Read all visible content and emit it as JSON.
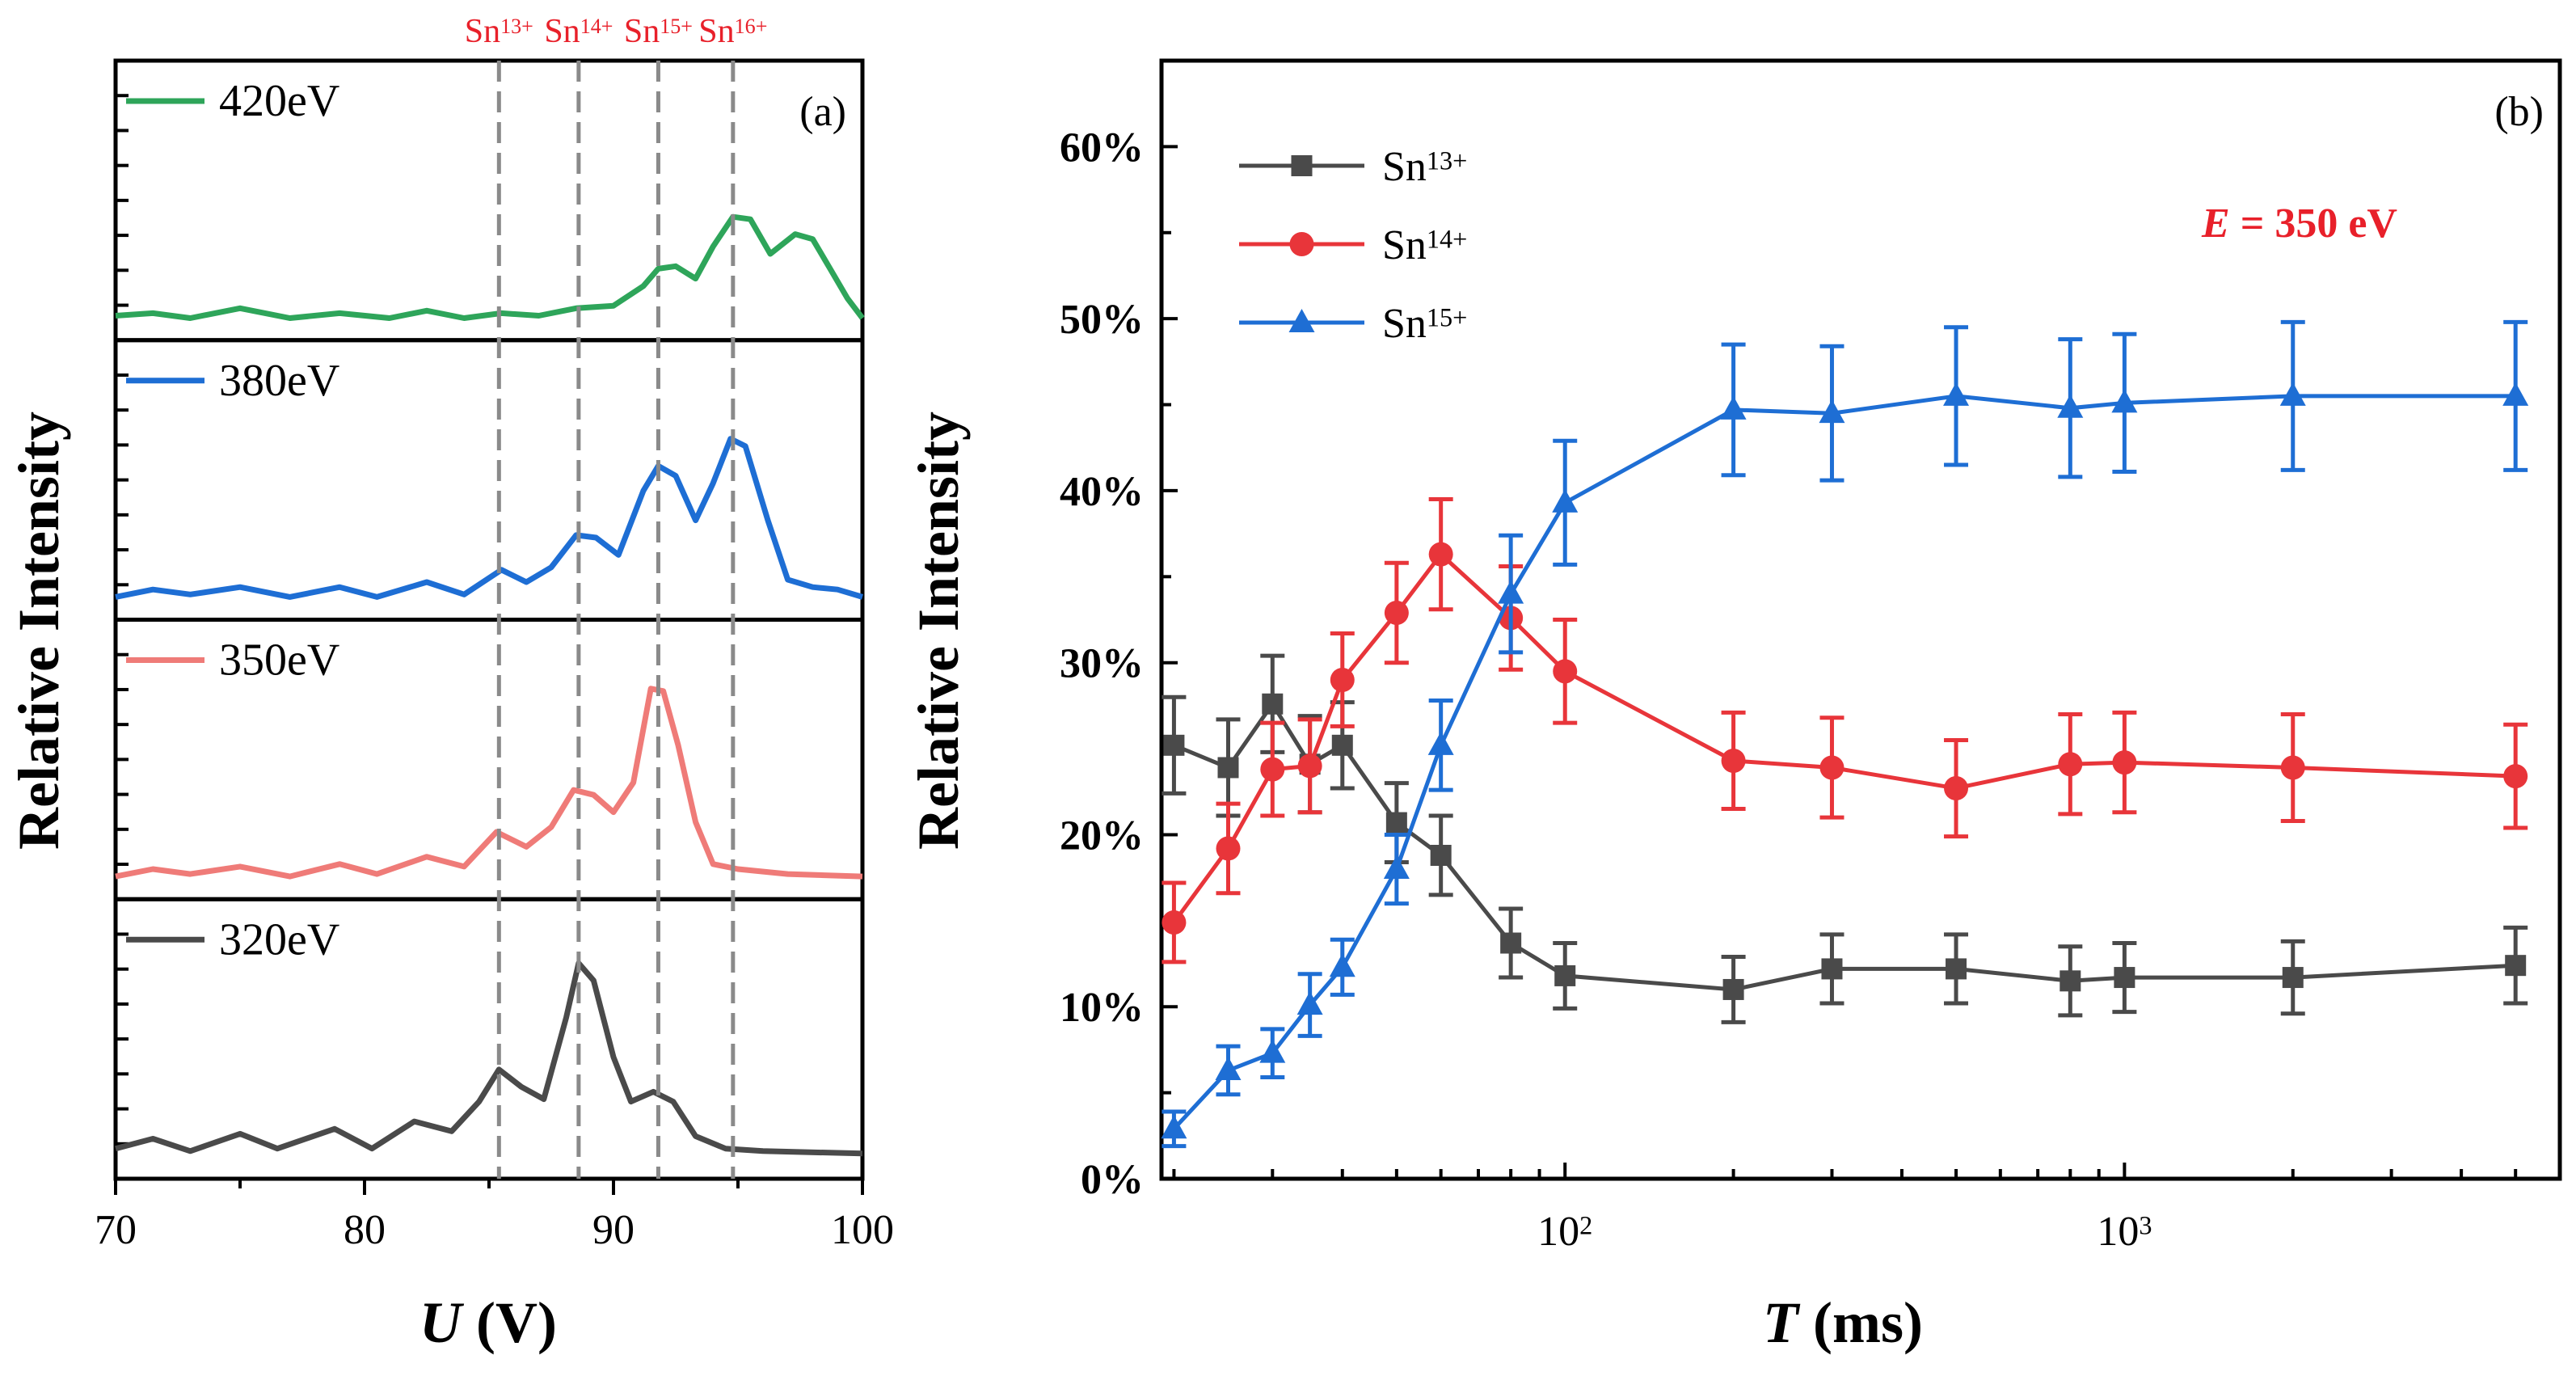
{
  "chart_data": [
    {
      "id": "a",
      "type": "line",
      "panel_label": "(a)",
      "xlabel_var": "U",
      "xlabel_unit": " (V)",
      "ylabel": "Relative Intensity",
      "xlim": [
        70,
        100
      ],
      "xticks": [
        "70",
        "80",
        "90",
        "100"
      ],
      "vlines": [
        {
          "x": 85.4,
          "label_base": "Sn",
          "label_sup": "13+"
        },
        {
          "x": 88.6,
          "label_base": "Sn",
          "label_sup": "14+"
        },
        {
          "x": 91.8,
          "label_base": "Sn",
          "label_sup": "15+"
        },
        {
          "x": 94.8,
          "label_base": "Sn",
          "label_sup": "16+"
        }
      ],
      "series": [
        {
          "name": "420eV",
          "color": "#2ea55a",
          "points": [
            [
              70,
              0.05
            ],
            [
              71.5,
              0.06
            ],
            [
              73,
              0.04
            ],
            [
              75,
              0.08
            ],
            [
              77,
              0.04
            ],
            [
              79,
              0.06
            ],
            [
              81,
              0.04
            ],
            [
              82.5,
              0.07
            ],
            [
              84,
              0.04
            ],
            [
              85.5,
              0.06
            ],
            [
              87,
              0.05
            ],
            [
              88.5,
              0.08
            ],
            [
              90,
              0.09
            ],
            [
              91.2,
              0.17
            ],
            [
              91.8,
              0.24
            ],
            [
              92.5,
              0.25
            ],
            [
              93.3,
              0.2
            ],
            [
              94,
              0.33
            ],
            [
              94.8,
              0.45
            ],
            [
              95.5,
              0.44
            ],
            [
              96.3,
              0.3
            ],
            [
              97.3,
              0.38
            ],
            [
              98,
              0.36
            ],
            [
              98.7,
              0.24
            ],
            [
              99.4,
              0.12
            ],
            [
              100,
              0.04
            ]
          ]
        },
        {
          "name": "380eV",
          "color": "#1e6ed4",
          "points": [
            [
              70,
              0.02
            ],
            [
              71.5,
              0.05
            ],
            [
              73,
              0.03
            ],
            [
              75,
              0.06
            ],
            [
              77,
              0.02
            ],
            [
              79,
              0.06
            ],
            [
              80.5,
              0.02
            ],
            [
              82.5,
              0.08
            ],
            [
              84,
              0.03
            ],
            [
              85.5,
              0.13
            ],
            [
              86.5,
              0.08
            ],
            [
              87.5,
              0.14
            ],
            [
              88.5,
              0.27
            ],
            [
              89.3,
              0.26
            ],
            [
              90.2,
              0.19
            ],
            [
              91.2,
              0.45
            ],
            [
              91.8,
              0.55
            ],
            [
              92.5,
              0.51
            ],
            [
              93.3,
              0.33
            ],
            [
              94,
              0.48
            ],
            [
              94.7,
              0.66
            ],
            [
              95.3,
              0.63
            ],
            [
              96.2,
              0.33
            ],
            [
              97,
              0.09
            ],
            [
              98,
              0.06
            ],
            [
              99,
              0.05
            ],
            [
              100,
              0.02
            ]
          ]
        },
        {
          "name": "350eV",
          "color": "#ef7b78",
          "points": [
            [
              70,
              0.02
            ],
            [
              71.5,
              0.05
            ],
            [
              73,
              0.03
            ],
            [
              75,
              0.06
            ],
            [
              77,
              0.02
            ],
            [
              79,
              0.07
            ],
            [
              80.5,
              0.03
            ],
            [
              82.5,
              0.1
            ],
            [
              84,
              0.06
            ],
            [
              85.3,
              0.2
            ],
            [
              86.5,
              0.14
            ],
            [
              87.5,
              0.22
            ],
            [
              88.4,
              0.37
            ],
            [
              89.2,
              0.35
            ],
            [
              90,
              0.28
            ],
            [
              90.8,
              0.4
            ],
            [
              91.5,
              0.78
            ],
            [
              92,
              0.77
            ],
            [
              92.6,
              0.55
            ],
            [
              93.3,
              0.24
            ],
            [
              94,
              0.07
            ],
            [
              95,
              0.05
            ],
            [
              97,
              0.03
            ],
            [
              100,
              0.02
            ]
          ]
        },
        {
          "name": "320eV",
          "color": "#4a4a4a",
          "points": [
            [
              70,
              0.05
            ],
            [
              71.5,
              0.09
            ],
            [
              73,
              0.04
            ],
            [
              75,
              0.11
            ],
            [
              76.5,
              0.05
            ],
            [
              78.8,
              0.13
            ],
            [
              80.3,
              0.05
            ],
            [
              82,
              0.16
            ],
            [
              83.5,
              0.12
            ],
            [
              84.6,
              0.24
            ],
            [
              85.4,
              0.37
            ],
            [
              86.3,
              0.3
            ],
            [
              87.2,
              0.25
            ],
            [
              88.1,
              0.58
            ],
            [
              88.6,
              0.8
            ],
            [
              89.2,
              0.73
            ],
            [
              90,
              0.42
            ],
            [
              90.7,
              0.24
            ],
            [
              91.6,
              0.28
            ],
            [
              92.4,
              0.24
            ],
            [
              93.3,
              0.1
            ],
            [
              94.5,
              0.05
            ],
            [
              96,
              0.04
            ],
            [
              100,
              0.03
            ]
          ]
        }
      ]
    },
    {
      "id": "b",
      "type": "line",
      "panel_label": "(b)",
      "xlabel_var": "T",
      "xlabel_unit": " (ms)",
      "ylabel": "Relative Intensity",
      "xscale": "log",
      "xlim": [
        19,
        6000
      ],
      "ylim": [
        0,
        65
      ],
      "xticks": [
        {
          "value": 100,
          "base": "10",
          "exp": "2"
        },
        {
          "value": 1000,
          "base": "10",
          "exp": "3"
        }
      ],
      "yticks": [
        "0%",
        "10%",
        "20%",
        "30%",
        "40%",
        "50%",
        "60%"
      ],
      "annotation": {
        "var": "E",
        "rest": " = 350 eV",
        "color": "#e8202a"
      },
      "legend_position": "top-left",
      "x": [
        20,
        25,
        30,
        35,
        40,
        50,
        60,
        80,
        100,
        200,
        300,
        500,
        800,
        1000,
        2000,
        5000
      ],
      "series": [
        {
          "name_base": "Sn",
          "name_sup": "13+",
          "color": "#4a4a4a",
          "marker": "square",
          "values": [
            25.2,
            23.9,
            27.6,
            24.1,
            25.2,
            20.7,
            18.8,
            13.7,
            11.8,
            11.0,
            12.2,
            12.2,
            11.5,
            11.7,
            11.7,
            12.4
          ],
          "errors": [
            2.8,
            2.8,
            2.8,
            2.8,
            2.5,
            2.3,
            2.3,
            2.0,
            1.9,
            1.9,
            2.0,
            2.0,
            2.0,
            2.0,
            2.1,
            2.2
          ]
        },
        {
          "name_base": "Sn",
          "name_sup": "14+",
          "color": "#e8353a",
          "marker": "circle",
          "values": [
            14.9,
            19.2,
            23.8,
            24.0,
            29.0,
            32.9,
            36.3,
            32.6,
            29.5,
            24.3,
            23.9,
            22.7,
            24.1,
            24.2,
            23.9,
            23.4
          ],
          "errors": [
            2.3,
            2.6,
            2.7,
            2.7,
            2.7,
            2.9,
            3.2,
            3.0,
            3.0,
            2.8,
            2.9,
            2.8,
            2.9,
            2.9,
            3.1,
            3.0
          ]
        },
        {
          "name_base": "Sn",
          "name_sup": "15+",
          "color": "#1e6ed4",
          "marker": "triangle",
          "values": [
            2.9,
            6.3,
            7.3,
            10.1,
            12.3,
            18.0,
            25.2,
            34.0,
            39.3,
            44.7,
            44.5,
            45.5,
            44.8,
            45.1,
            45.5,
            45.5
          ],
          "errors": [
            1.0,
            1.4,
            1.4,
            1.8,
            1.6,
            2.0,
            2.6,
            3.4,
            3.6,
            3.8,
            3.9,
            4.0,
            4.0,
            4.0,
            4.3,
            4.3
          ]
        }
      ]
    }
  ]
}
